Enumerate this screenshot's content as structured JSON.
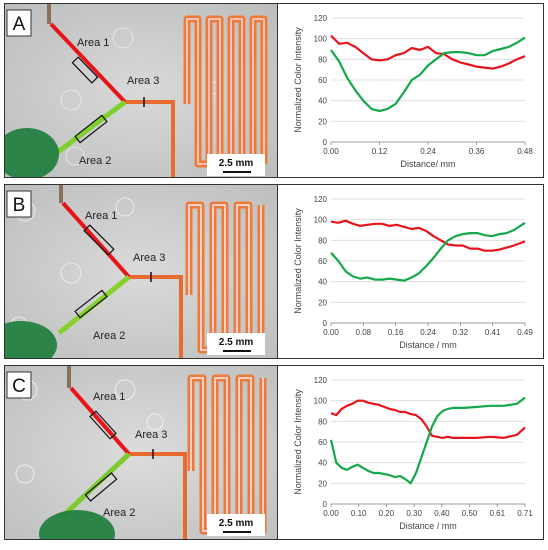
{
  "panels": [
    {
      "letter": "A",
      "area1": "Area 1",
      "area2": "Area 2",
      "area3": "Area 3",
      "scale": "2.5 mm"
    },
    {
      "letter": "B",
      "area1": "Area 1",
      "area2": "Area 2",
      "area3": "Area 3",
      "scale": "2.5 mm"
    },
    {
      "letter": "C",
      "area1": "Area 1",
      "area2": "Area 2",
      "area3": "Area 3",
      "scale": "2.5 mm"
    }
  ],
  "colors": {
    "red": "#e8141b",
    "green": "#15a84a"
  },
  "chart_data": [
    {
      "type": "line",
      "xlabel": "Distance/ mm",
      "ylabel": "Normalized Color Intensity",
      "ylim": [
        0,
        120
      ],
      "yticks": [
        "0",
        "20",
        "40",
        "60",
        "80",
        "100",
        "120"
      ],
      "xticks": [
        "0.00",
        "0.12",
        "0.24",
        "0.36",
        "0.48"
      ],
      "xlim": [
        0,
        0.48
      ],
      "series": [
        {
          "color": "red",
          "x": [
            0,
            0.02,
            0.04,
            0.06,
            0.08,
            0.1,
            0.12,
            0.14,
            0.16,
            0.18,
            0.2,
            0.22,
            0.24,
            0.26,
            0.28,
            0.3,
            0.32,
            0.34,
            0.36,
            0.38,
            0.4,
            0.42,
            0.44,
            0.46,
            0.48
          ],
          "y": [
            103,
            95,
            96,
            92,
            86,
            80,
            79,
            80,
            84,
            86,
            91,
            89,
            92,
            86,
            85,
            80,
            77,
            75,
            73,
            72,
            71,
            73,
            76,
            80,
            83
          ]
        },
        {
          "color": "green",
          "x": [
            0,
            0.02,
            0.04,
            0.06,
            0.08,
            0.1,
            0.12,
            0.14,
            0.16,
            0.18,
            0.2,
            0.22,
            0.24,
            0.26,
            0.28,
            0.3,
            0.32,
            0.34,
            0.36,
            0.38,
            0.4,
            0.42,
            0.44,
            0.46,
            0.48
          ],
          "y": [
            89,
            78,
            62,
            50,
            40,
            32,
            30,
            32,
            37,
            48,
            60,
            65,
            74,
            80,
            86,
            87,
            87,
            86,
            84,
            84,
            88,
            90,
            92,
            96,
            101
          ]
        }
      ]
    },
    {
      "type": "line",
      "xlabel": "Distance / mm",
      "ylabel": "Normalized Color Intensity",
      "ylim": [
        0,
        120
      ],
      "yticks": [
        "0",
        "20",
        "40",
        "60",
        "80",
        "100",
        "120"
      ],
      "xticks": [
        "0.00",
        "0.08",
        "0.16",
        "0.24",
        "0.32",
        "0.41",
        "0.49"
      ],
      "xlim": [
        0,
        0.53
      ],
      "series": [
        {
          "color": "red",
          "x": [
            0,
            0.02,
            0.04,
            0.06,
            0.08,
            0.1,
            0.12,
            0.14,
            0.16,
            0.18,
            0.2,
            0.22,
            0.24,
            0.26,
            0.28,
            0.3,
            0.32,
            0.34,
            0.36,
            0.38,
            0.4,
            0.42,
            0.44,
            0.46,
            0.48,
            0.5,
            0.53
          ],
          "y": [
            98,
            97,
            99,
            96,
            94,
            95,
            96,
            96,
            94,
            95,
            93,
            91,
            92,
            89,
            84,
            80,
            76,
            75,
            75,
            72,
            72,
            70,
            70,
            71,
            73,
            75,
            79
          ]
        },
        {
          "color": "green",
          "x": [
            0,
            0.02,
            0.04,
            0.06,
            0.08,
            0.1,
            0.12,
            0.14,
            0.16,
            0.18,
            0.2,
            0.22,
            0.24,
            0.26,
            0.28,
            0.3,
            0.32,
            0.34,
            0.36,
            0.38,
            0.4,
            0.42,
            0.44,
            0.46,
            0.48,
            0.5,
            0.53
          ],
          "y": [
            68,
            60,
            50,
            45,
            43,
            44,
            42,
            42,
            43,
            42,
            41,
            44,
            48,
            55,
            63,
            72,
            80,
            84,
            86,
            87,
            87,
            85,
            84,
            86,
            87,
            90,
            97
          ]
        }
      ]
    },
    {
      "type": "line",
      "xlabel": "Distance / mm",
      "ylabel": "Normalized Color Intensity",
      "ylim": [
        0,
        120
      ],
      "yticks": [
        "0",
        "20",
        "40",
        "60",
        "80",
        "100",
        "120"
      ],
      "xticks": [
        "0.00",
        "0.10",
        "0.20",
        "0.30",
        "0.40",
        "0.50",
        "0.61",
        "0.71"
      ],
      "xlim": [
        0,
        0.73
      ],
      "series": [
        {
          "color": "red",
          "x": [
            0,
            0.02,
            0.04,
            0.06,
            0.08,
            0.1,
            0.12,
            0.14,
            0.16,
            0.18,
            0.2,
            0.22,
            0.24,
            0.26,
            0.28,
            0.3,
            0.32,
            0.34,
            0.36,
            0.38,
            0.4,
            0.42,
            0.44,
            0.46,
            0.5,
            0.55,
            0.6,
            0.65,
            0.7,
            0.73
          ],
          "y": [
            88,
            86,
            92,
            95,
            97,
            100,
            100,
            98,
            97,
            96,
            94,
            92,
            91,
            89,
            89,
            87,
            86,
            82,
            75,
            66,
            65,
            64,
            65,
            64,
            64,
            64,
            65,
            64,
            67,
            74
          ]
        },
        {
          "color": "green",
          "x": [
            0,
            0.02,
            0.04,
            0.06,
            0.08,
            0.1,
            0.12,
            0.14,
            0.16,
            0.18,
            0.2,
            0.22,
            0.24,
            0.26,
            0.28,
            0.3,
            0.32,
            0.34,
            0.36,
            0.38,
            0.4,
            0.42,
            0.44,
            0.46,
            0.5,
            0.55,
            0.6,
            0.65,
            0.7,
            0.73
          ],
          "y": [
            62,
            40,
            35,
            33,
            36,
            38,
            35,
            32,
            30,
            30,
            29,
            28,
            26,
            27,
            24,
            20,
            30,
            45,
            60,
            75,
            85,
            90,
            92,
            93,
            93,
            94,
            95,
            95,
            97,
            103
          ]
        }
      ]
    }
  ]
}
